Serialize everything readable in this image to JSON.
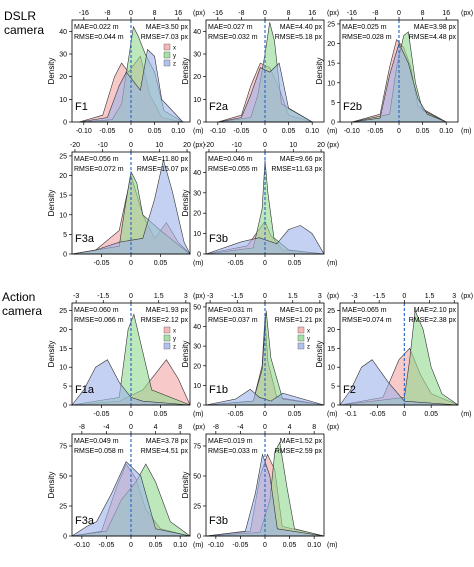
{
  "sections": [
    {
      "label_line1": "DSLR",
      "label_line2": "camera"
    },
    {
      "label_line1": "Action",
      "label_line2": "camera"
    }
  ],
  "colors": {
    "x": "#f4a5a5",
    "y": "#8fd88f",
    "z": "#9fb3ea",
    "zero_line": "#2f6fc9"
  },
  "legend": [
    "x",
    "y",
    "z"
  ],
  "y_axis_label": "Density",
  "x_axis_unit_top": "(px)",
  "x_axis_unit_bottom": "(m)",
  "chart_data": [
    {
      "id": "dslr-F1",
      "type": "area",
      "name": "F1",
      "mae_m": "MAE=0.022 m",
      "mae_px": "MAE=3.50 px",
      "rmse_m": "RMSE=0.044 m",
      "rmse_px": "RMSE=7.03 px",
      "legend_shown": true,
      "xlim": [
        -0.125,
        0.125
      ],
      "x_ticks": [
        -0.1,
        -0.05,
        0,
        0.05,
        0.1
      ],
      "x_tick_labels": [
        "-0.10",
        "-0.05",
        "0",
        "0.05",
        "0.10"
      ],
      "top_ticks": [
        -0.1,
        -0.05,
        0,
        0.05,
        0.1
      ],
      "top_tick_labels": [
        "-16",
        "-8",
        "0",
        "8",
        "16"
      ],
      "ylim": [
        0,
        45
      ],
      "y_ticks": [
        0,
        10,
        20,
        30,
        40
      ],
      "series": [
        {
          "name": "x",
          "x": [
            -0.11,
            -0.06,
            -0.035,
            -0.02,
            -0.005,
            0.005,
            0.02,
            0.04,
            0.065,
            0.11
          ],
          "y": [
            0,
            3,
            20,
            26,
            22,
            25,
            29,
            12,
            2,
            0
          ]
        },
        {
          "name": "y",
          "x": [
            -0.11,
            -0.04,
            -0.02,
            -0.005,
            0.005,
            0.015,
            0.03,
            0.05,
            0.07,
            0.11
          ],
          "y": [
            0,
            1,
            8,
            28,
            42,
            38,
            30,
            22,
            5,
            0
          ]
        },
        {
          "name": "z",
          "x": [
            -0.11,
            -0.05,
            -0.025,
            -0.01,
            0.005,
            0.02,
            0.035,
            0.05,
            0.065,
            0.11
          ],
          "y": [
            0,
            2,
            16,
            22,
            18,
            14,
            32,
            29,
            10,
            0
          ]
        }
      ]
    },
    {
      "id": "dslr-F2a",
      "type": "area",
      "name": "F2a",
      "mae_m": "MAE=0.027 m",
      "mae_px": "MAE=4.40 px",
      "rmse_m": "RMSE=0.032 m",
      "rmse_px": "RMSE=5.18 px",
      "legend_shown": false,
      "xlim": [
        -0.125,
        0.125
      ],
      "x_ticks": [
        -0.1,
        -0.05,
        0,
        0.05,
        0.1
      ],
      "x_tick_labels": [
        "-0.10",
        "-0.05",
        "0",
        "0.05",
        "0.10"
      ],
      "top_ticks": [
        -0.1,
        -0.05,
        0,
        0.05,
        0.1
      ],
      "top_tick_labels": [
        "-16",
        "-8",
        "0",
        "8",
        "16"
      ],
      "ylim": [
        0,
        45
      ],
      "y_ticks": [
        0,
        10,
        20,
        30,
        40
      ],
      "series": [
        {
          "name": "x",
          "x": [
            -0.1,
            -0.05,
            -0.03,
            -0.01,
            0.01,
            0.03,
            0.05,
            0.1
          ],
          "y": [
            0,
            3,
            16,
            26,
            24,
            15,
            3,
            0
          ]
        },
        {
          "name": "y",
          "x": [
            -0.1,
            -0.03,
            -0.015,
            0,
            0.01,
            0.02,
            0.035,
            0.1
          ],
          "y": [
            0,
            2,
            12,
            30,
            44,
            36,
            8,
            0
          ]
        },
        {
          "name": "z",
          "x": [
            -0.1,
            -0.05,
            -0.03,
            -0.01,
            0.01,
            0.03,
            0.05,
            0.1
          ],
          "y": [
            0,
            2,
            12,
            24,
            22,
            26,
            6,
            0
          ]
        }
      ]
    },
    {
      "id": "dslr-F2b",
      "type": "area",
      "name": "F2b",
      "mae_m": "MAE=0.025 m",
      "mae_px": "MAE=3.98 px",
      "rmse_m": "RMSE=0.028 m",
      "rmse_px": "RMSE=4.48 px",
      "legend_shown": false,
      "xlim": [
        -0.125,
        0.125
      ],
      "x_ticks": [
        -0.1,
        -0.05,
        0,
        0.05,
        0.1
      ],
      "x_tick_labels": [
        "-0.10",
        "-0.05",
        "0",
        "0.05",
        "0.10"
      ],
      "top_ticks": [
        -0.1,
        -0.05,
        0,
        0.05,
        0.1
      ],
      "top_tick_labels": [
        "-16",
        "-8",
        "0",
        "8",
        "16"
      ],
      "ylim": [
        0,
        26
      ],
      "y_ticks": [
        0,
        5,
        10,
        15,
        20,
        25
      ],
      "series": [
        {
          "name": "x",
          "x": [
            -0.1,
            -0.04,
            -0.02,
            -0.005,
            0.01,
            0.025,
            0.04,
            0.1
          ],
          "y": [
            0,
            2,
            14,
            21,
            19,
            14,
            4,
            0
          ]
        },
        {
          "name": "y",
          "x": [
            -0.1,
            -0.02,
            -0.005,
            0.01,
            0.02,
            0.035,
            0.05,
            0.1
          ],
          "y": [
            0,
            2,
            14,
            22,
            23,
            10,
            3,
            0
          ]
        },
        {
          "name": "z",
          "x": [
            -0.1,
            -0.04,
            -0.02,
            0,
            0.02,
            0.04,
            0.06,
            0.1
          ],
          "y": [
            0,
            1,
            12,
            20,
            15,
            6,
            2,
            0
          ]
        }
      ]
    },
    {
      "id": "dslr-F3a",
      "type": "area",
      "name": "F3a",
      "mae_m": "MAE=0.056 m",
      "mae_px": "MAE=11.80 px",
      "rmse_m": "RMSE=0.072 m",
      "rmse_px": "RMSE=15.07 px",
      "legend_shown": false,
      "xlim": [
        -0.1,
        0.1
      ],
      "x_ticks": [
        -0.05,
        0,
        0.05
      ],
      "x_tick_labels": [
        "-0.05",
        "0",
        "0.05"
      ],
      "top_ticks": [
        -0.095,
        -0.048,
        0,
        0.048,
        0.095
      ],
      "top_tick_labels": [
        "-20",
        "-10",
        "0",
        "10",
        "20"
      ],
      "ylim": [
        0,
        26
      ],
      "y_ticks": [
        0,
        5,
        10,
        15,
        20,
        25
      ],
      "series": [
        {
          "name": "x",
          "x": [
            -0.1,
            -0.06,
            -0.02,
            0,
            0.02,
            0.04,
            0.06,
            0.08,
            0.1
          ],
          "y": [
            0,
            1,
            6,
            20,
            10,
            4,
            8,
            3,
            0
          ]
        },
        {
          "name": "y",
          "x": [
            -0.1,
            -0.02,
            -0.01,
            0,
            0.01,
            0.02,
            0.05,
            0.1
          ],
          "y": [
            0,
            2,
            12,
            21,
            18,
            10,
            6,
            0
          ]
        },
        {
          "name": "z",
          "x": [
            -0.1,
            -0.06,
            -0.02,
            0.02,
            0.04,
            0.055,
            0.07,
            0.09,
            0.1
          ],
          "y": [
            0,
            1,
            3,
            4,
            14,
            24,
            16,
            3,
            0
          ]
        }
      ]
    },
    {
      "id": "dslr-F3b",
      "type": "area",
      "name": "F3b",
      "mae_m": "MAE=0.046 m",
      "mae_px": "MAE=9.66 px",
      "rmse_m": "RMSE=0.055 m",
      "rmse_px": "RMSE=11.63 px",
      "legend_shown": false,
      "xlim": [
        -0.1,
        0.1
      ],
      "x_ticks": [
        -0.05,
        0,
        0.05
      ],
      "x_tick_labels": [
        "-0.05",
        "0",
        "0.05"
      ],
      "top_ticks": [
        -0.095,
        -0.048,
        0,
        0.048,
        0.095
      ],
      "top_tick_labels": [
        "-20",
        "-10",
        "0",
        "10",
        "20"
      ],
      "ylim": [
        0,
        50
      ],
      "y_ticks": [
        0,
        10,
        20,
        30,
        40
      ],
      "series": [
        {
          "name": "x",
          "x": [
            -0.1,
            -0.03,
            -0.01,
            0,
            0.01,
            0.03,
            0.1
          ],
          "y": [
            0,
            4,
            12,
            16,
            9,
            2,
            0
          ]
        },
        {
          "name": "y",
          "x": [
            -0.1,
            -0.02,
            -0.005,
            0,
            0.005,
            0.015,
            0.04,
            0.1
          ],
          "y": [
            0,
            3,
            22,
            46,
            30,
            8,
            2,
            0
          ]
        },
        {
          "name": "z",
          "x": [
            -0.1,
            -0.04,
            -0.01,
            0.02,
            0.04,
            0.06,
            0.08,
            0.1
          ],
          "y": [
            0,
            6,
            8,
            5,
            12,
            14,
            10,
            0
          ]
        }
      ]
    },
    {
      "id": "action-F1a",
      "type": "area",
      "name": "F1a",
      "mae_m": "MAE=0.060 m",
      "mae_px": "MAE=1.93 px",
      "rmse_m": "RMSE=0.066 m",
      "rmse_px": "RMSE=2.12 px",
      "legend_shown": true,
      "xlim": [
        -0.1,
        0.1
      ],
      "x_ticks": [
        -0.05,
        0,
        0.05
      ],
      "x_tick_labels": [
        "-0.05",
        "0",
        "0.05"
      ],
      "top_ticks": [
        -0.093,
        -0.047,
        0,
        0.047,
        0.093
      ],
      "top_tick_labels": [
        "-3",
        "-1.5",
        "0",
        "1.5",
        "3"
      ],
      "ylim": [
        0,
        27
      ],
      "y_ticks": [
        0,
        5,
        10,
        15,
        20,
        25
      ],
      "series": [
        {
          "name": "x",
          "x": [
            -0.1,
            -0.02,
            0.02,
            0.04,
            0.06,
            0.08,
            0.1
          ],
          "y": [
            0,
            1,
            4,
            8,
            12,
            7,
            0
          ]
        },
        {
          "name": "y",
          "x": [
            -0.1,
            -0.02,
            -0.005,
            0.005,
            0.02,
            0.035,
            0.1
          ],
          "y": [
            0,
            2,
            20,
            24,
            14,
            4,
            0
          ]
        },
        {
          "name": "z",
          "x": [
            -0.1,
            -0.08,
            -0.06,
            -0.04,
            -0.02,
            0,
            0.02,
            0.1
          ],
          "y": [
            0,
            4,
            10,
            12,
            6,
            2,
            1,
            0
          ]
        }
      ]
    },
    {
      "id": "action-F1b",
      "type": "area",
      "name": "F1b",
      "mae_m": "MAE=0.031 m",
      "mae_px": "MAE=1.00 px",
      "rmse_m": "RMSE=0.037 m",
      "rmse_px": "RMSE=1.21 px",
      "legend_shown": true,
      "xlim": [
        -0.1,
        0.1
      ],
      "x_ticks": [
        -0.05,
        0,
        0.05
      ],
      "x_tick_labels": [
        "-0.05",
        "0",
        "0.05"
      ],
      "top_ticks": [
        -0.093,
        -0.047,
        0,
        0.047,
        0.093
      ],
      "top_tick_labels": [
        "-3",
        "-1.5",
        "0",
        "1.5",
        "3"
      ],
      "ylim": [
        0,
        52
      ],
      "y_ticks": [
        0,
        10,
        20,
        30,
        40,
        50
      ],
      "series": [
        {
          "name": "x",
          "x": [
            -0.1,
            -0.02,
            -0.005,
            0,
            0.005,
            0.02,
            0.1
          ],
          "y": [
            0,
            2,
            20,
            45,
            22,
            4,
            0
          ]
        },
        {
          "name": "y",
          "x": [
            -0.1,
            -0.02,
            -0.005,
            0.002,
            0.01,
            0.03,
            0.1
          ],
          "y": [
            0,
            2,
            18,
            48,
            24,
            3,
            0
          ]
        },
        {
          "name": "z",
          "x": [
            -0.1,
            -0.05,
            -0.025,
            -0.01,
            0.01,
            0.03,
            0.1
          ],
          "y": [
            0,
            3,
            8,
            4,
            2,
            6,
            0
          ]
        }
      ]
    },
    {
      "id": "action-F2",
      "type": "area",
      "name": "F2",
      "mae_m": "MAE=0.065 m",
      "mae_px": "MAE=2.10 px",
      "rmse_m": "RMSE=0.074 m",
      "rmse_px": "RMSE=2.38 px",
      "legend_shown": false,
      "xlim": [
        -0.12,
        0.1
      ],
      "x_ticks": [
        -0.1,
        -0.05,
        0,
        0.05
      ],
      "x_tick_labels": [
        "-0.1",
        "-0.05",
        "0",
        "0.05"
      ],
      "top_ticks": [
        -0.093,
        -0.047,
        0,
        0.047,
        0.093
      ],
      "top_tick_labels": [
        "-3",
        "-1.5",
        "0",
        "1.5",
        "3"
      ],
      "ylim": [
        0,
        27
      ],
      "y_ticks": [
        0,
        5,
        10,
        15,
        20,
        25
      ],
      "series": [
        {
          "name": "x",
          "x": [
            -0.12,
            -0.04,
            -0.01,
            0.01,
            0.03,
            0.05,
            0.1
          ],
          "y": [
            0,
            2,
            12,
            15,
            8,
            3,
            0
          ]
        },
        {
          "name": "y",
          "x": [
            -0.12,
            0,
            0.01,
            0.02,
            0.035,
            0.05,
            0.07,
            0.1
          ],
          "y": [
            0,
            2,
            12,
            25,
            20,
            10,
            3,
            0
          ]
        },
        {
          "name": "z",
          "x": [
            -0.12,
            -0.1,
            -0.08,
            -0.06,
            -0.03,
            0,
            0.1
          ],
          "y": [
            0,
            4,
            10,
            12,
            6,
            1,
            0
          ]
        }
      ]
    },
    {
      "id": "action-F3a",
      "type": "area",
      "name": "F3a",
      "mae_m": "MAE=0.049 m",
      "mae_px": "MAE=3.78 px",
      "rmse_m": "RMSE=0.058 m",
      "rmse_px": "RMSE=4.51 px",
      "legend_shown": false,
      "xlim": [
        -0.12,
        0.12
      ],
      "x_ticks": [
        -0.1,
        -0.05,
        0,
        0.05,
        0.1
      ],
      "x_tick_labels": [
        "-0.10",
        "-0.05",
        "0",
        "0.05",
        "0.10"
      ],
      "top_ticks": [
        -0.1,
        -0.05,
        0,
        0.05,
        0.1
      ],
      "top_tick_labels": [
        "-8",
        "-4",
        "0",
        "4",
        "8"
      ],
      "ylim": [
        0,
        85
      ],
      "y_ticks": [
        0,
        25,
        50,
        75
      ],
      "series": [
        {
          "name": "x",
          "x": [
            -0.12,
            -0.06,
            -0.03,
            -0.01,
            0.01,
            0.03,
            0.06,
            0.12
          ],
          "y": [
            0,
            4,
            40,
            60,
            48,
            22,
            6,
            0
          ]
        },
        {
          "name": "y",
          "x": [
            -0.12,
            -0.05,
            -0.02,
            0.01,
            0.03,
            0.05,
            0.08,
            0.12
          ],
          "y": [
            0,
            4,
            30,
            45,
            60,
            45,
            12,
            0
          ]
        },
        {
          "name": "z",
          "x": [
            -0.12,
            -0.09,
            -0.07,
            -0.04,
            -0.01,
            0.02,
            0.05,
            0.12
          ],
          "y": [
            0,
            8,
            12,
            35,
            62,
            50,
            6,
            0
          ]
        }
      ]
    },
    {
      "id": "action-F3b",
      "type": "area",
      "name": "F3b",
      "mae_m": "MAE=0.019 m",
      "mae_px": "MAE=1.52 px",
      "rmse_m": "RMSE=0.033 m",
      "rmse_px": "RMSE=2.59 px",
      "legend_shown": false,
      "xlim": [
        -0.12,
        0.12
      ],
      "x_ticks": [
        -0.1,
        -0.05,
        0,
        0.05,
        0.1
      ],
      "x_tick_labels": [
        "-0.10",
        "-0.05",
        "0",
        "0.05",
        "0.10"
      ],
      "top_ticks": [
        -0.1,
        -0.05,
        0,
        0.05,
        0.1
      ],
      "top_tick_labels": [
        "-8",
        "-4",
        "0",
        "4",
        "8"
      ],
      "ylim": [
        0,
        85
      ],
      "y_ticks": [
        0,
        25,
        50,
        75
      ],
      "series": [
        {
          "name": "x",
          "x": [
            -0.12,
            -0.03,
            -0.01,
            0.005,
            0.02,
            0.035,
            0.12
          ],
          "y": [
            0,
            4,
            50,
            68,
            55,
            8,
            0
          ]
        },
        {
          "name": "y",
          "x": [
            -0.12,
            -0.01,
            0.01,
            0.02,
            0.03,
            0.045,
            0.06,
            0.12
          ],
          "y": [
            0,
            3,
            30,
            70,
            78,
            40,
            6,
            0
          ]
        },
        {
          "name": "z",
          "x": [
            -0.12,
            -0.04,
            -0.02,
            -0.005,
            0.01,
            0.025,
            0.12
          ],
          "y": [
            0,
            4,
            35,
            68,
            50,
            6,
            0
          ]
        }
      ]
    }
  ]
}
